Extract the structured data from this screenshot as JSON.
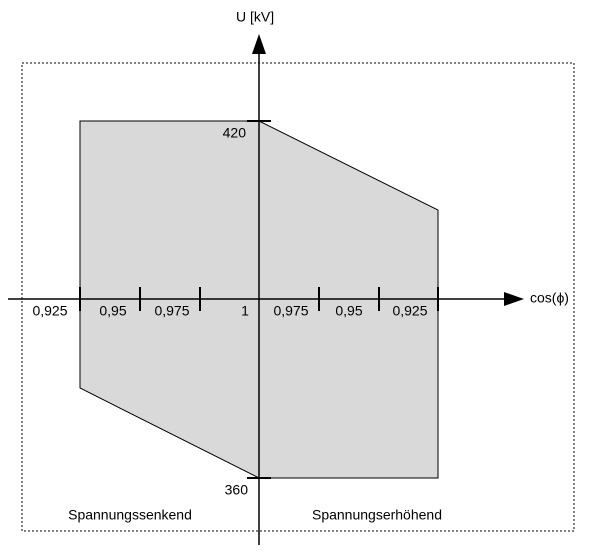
{
  "axes": {
    "y_label": "U [kV]",
    "x_label": "cos(ϕ)"
  },
  "y_labels": [
    "420",
    "360"
  ],
  "x_labels": [
    "0,925",
    "0,95",
    "0,975",
    "1",
    "0,975",
    "0,95",
    "0,925"
  ],
  "regions": [
    "Spannungssenkend",
    "Spannungserhöhend"
  ]
}
